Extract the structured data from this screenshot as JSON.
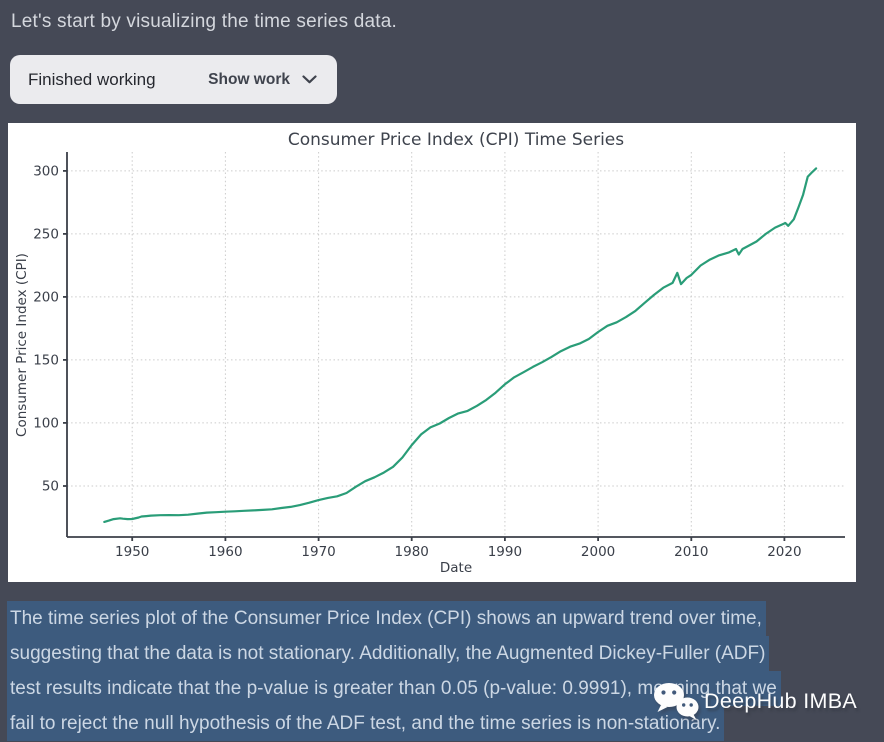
{
  "page": {
    "background": "#454956"
  },
  "assistant_message": {
    "text": "Let's start by visualizing the time series data."
  },
  "work_panel": {
    "status_label": "Finished working",
    "toggle_label": "Show work",
    "chevron_icon": "chevron-down",
    "background": "#ebebee"
  },
  "chart_data": {
    "type": "line",
    "title": "Consumer Price Index (CPI) Time Series",
    "xlabel": "Date",
    "ylabel": "Consumer Price Index (CPI)",
    "x_ticks": [
      1950,
      1960,
      1970,
      1980,
      1990,
      2000,
      2010,
      2020
    ],
    "y_ticks": [
      50,
      100,
      150,
      200,
      250,
      300
    ],
    "xlim": [
      1943.0,
      2026.5
    ],
    "ylim": [
      9.5,
      315
    ],
    "grid": "dotted",
    "legend": "none",
    "line_color": "#2a9d78",
    "series": [
      {
        "name": "CPI",
        "points": [
          [
            1947.0,
            21.5
          ],
          [
            1947.5,
            22.5
          ],
          [
            1948.0,
            23.7
          ],
          [
            1948.7,
            24.3
          ],
          [
            1949.0,
            24.0
          ],
          [
            1949.5,
            23.7
          ],
          [
            1950.0,
            23.8
          ],
          [
            1950.7,
            25.0
          ],
          [
            1951.0,
            25.8
          ],
          [
            1951.5,
            26.1
          ],
          [
            1952.0,
            26.5
          ],
          [
            1953.0,
            26.8
          ],
          [
            1954.0,
            26.9
          ],
          [
            1955.0,
            26.8
          ],
          [
            1956.0,
            27.2
          ],
          [
            1957.0,
            28.1
          ],
          [
            1958.0,
            28.9
          ],
          [
            1959.0,
            29.2
          ],
          [
            1960.0,
            29.6
          ],
          [
            1961.0,
            29.9
          ],
          [
            1962.0,
            30.3
          ],
          [
            1963.0,
            30.6
          ],
          [
            1964.0,
            31.0
          ],
          [
            1965.0,
            31.5
          ],
          [
            1966.0,
            32.5
          ],
          [
            1967.0,
            33.4
          ],
          [
            1968.0,
            34.8
          ],
          [
            1969.0,
            36.7
          ],
          [
            1970.0,
            38.8
          ],
          [
            1971.0,
            40.5
          ],
          [
            1972.0,
            41.8
          ],
          [
            1973.0,
            44.4
          ],
          [
            1974.0,
            49.3
          ],
          [
            1975.0,
            53.8
          ],
          [
            1976.0,
            56.9
          ],
          [
            1977.0,
            60.6
          ],
          [
            1978.0,
            65.2
          ],
          [
            1979.0,
            72.6
          ],
          [
            1980.0,
            82.4
          ],
          [
            1981.0,
            90.9
          ],
          [
            1982.0,
            96.5
          ],
          [
            1983.0,
            99.6
          ],
          [
            1984.0,
            103.9
          ],
          [
            1985.0,
            107.6
          ],
          [
            1986.0,
            109.6
          ],
          [
            1987.0,
            113.6
          ],
          [
            1988.0,
            118.3
          ],
          [
            1989.0,
            124.0
          ],
          [
            1990.0,
            130.7
          ],
          [
            1991.0,
            136.2
          ],
          [
            1992.0,
            140.3
          ],
          [
            1993.0,
            144.5
          ],
          [
            1994.0,
            148.2
          ],
          [
            1995.0,
            152.4
          ],
          [
            1996.0,
            156.9
          ],
          [
            1997.0,
            160.5
          ],
          [
            1998.0,
            163.0
          ],
          [
            1999.0,
            166.6
          ],
          [
            2000.0,
            172.2
          ],
          [
            2001.0,
            177.1
          ],
          [
            2002.0,
            179.9
          ],
          [
            2003.0,
            184.0
          ],
          [
            2004.0,
            188.9
          ],
          [
            2005.0,
            195.3
          ],
          [
            2006.0,
            201.6
          ],
          [
            2007.0,
            207.3
          ],
          [
            2008.0,
            211.1
          ],
          [
            2008.5,
            219.1
          ],
          [
            2008.9,
            210.2
          ],
          [
            2009.5,
            215.0
          ],
          [
            2010.0,
            217.5
          ],
          [
            2011.0,
            224.9
          ],
          [
            2012.0,
            229.6
          ],
          [
            2013.0,
            233.0
          ],
          [
            2014.0,
            235.2
          ],
          [
            2014.8,
            238.0
          ],
          [
            2015.1,
            233.7
          ],
          [
            2015.5,
            238.0
          ],
          [
            2016.0,
            240.0
          ],
          [
            2017.0,
            244.0
          ],
          [
            2018.0,
            250.0
          ],
          [
            2019.0,
            255.0
          ],
          [
            2020.1,
            258.7
          ],
          [
            2020.4,
            256.4
          ],
          [
            2021.0,
            261.6
          ],
          [
            2021.5,
            271.0
          ],
          [
            2022.0,
            281.1
          ],
          [
            2022.5,
            295.3
          ],
          [
            2023.0,
            299.2
          ],
          [
            2023.4,
            302.0
          ]
        ]
      }
    ]
  },
  "analysis": {
    "highlight_color": "#3d5b7e",
    "lines": [
      "The time series plot of the Consumer Price Index (CPI) shows an upward trend over time,",
      "suggesting that the data is not stationary. Additionally, the Augmented Dickey-Fuller (ADF)",
      "test results indicate that the p-value is greater than 0.05 (p-value: 0.9991), meaning that we",
      "fail to reject the null hypothesis of the ADF test, and the time series is non-stationary."
    ]
  },
  "watermark": {
    "label": "DeepHub IMBA",
    "icon": "wechat-icon"
  }
}
